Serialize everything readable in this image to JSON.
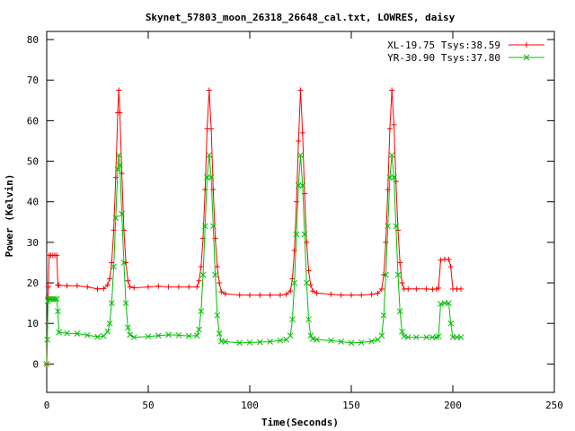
{
  "chart_data": {
    "type": "line",
    "title": "Skynet_57803_moon_26318_26648_cal.txt, LOWRES, daisy",
    "xlabel": "Time(Seconds)",
    "ylabel": "Power (Kelvin)",
    "xlim": [
      0,
      250
    ],
    "ylim": [
      -7,
      82
    ],
    "xticks": [
      0,
      50,
      100,
      150,
      200,
      250
    ],
    "yticks": [
      0,
      10,
      20,
      30,
      40,
      50,
      60,
      70,
      80
    ],
    "grid": false,
    "legend_position": "top-right",
    "series": [
      {
        "name": "XL-19.75 Tsys:38.59",
        "color": "#ff0000",
        "marker": "plus",
        "points": [
          [
            0,
            0
          ],
          [
            0.3,
            10
          ],
          [
            0.6,
            16.5
          ],
          [
            0.8,
            19
          ],
          [
            1.2,
            26.8
          ],
          [
            2,
            26.8
          ],
          [
            3,
            26.8
          ],
          [
            4,
            26.8
          ],
          [
            5,
            26.8
          ],
          [
            5.5,
            19.5
          ],
          [
            6,
            19.4
          ],
          [
            10,
            19.3
          ],
          [
            15,
            19.3
          ],
          [
            20,
            19
          ],
          [
            25,
            18.5
          ],
          [
            28,
            18.6
          ],
          [
            30,
            19.5
          ],
          [
            31,
            21
          ],
          [
            32,
            25
          ],
          [
            33,
            33
          ],
          [
            34,
            46
          ],
          [
            35,
            62
          ],
          [
            35.5,
            67.5
          ],
          [
            36,
            62
          ],
          [
            37,
            47
          ],
          [
            38,
            33
          ],
          [
            39,
            25
          ],
          [
            40,
            20.5
          ],
          [
            41,
            19
          ],
          [
            43,
            18.8
          ],
          [
            50,
            19
          ],
          [
            55,
            19.2
          ],
          [
            60,
            19
          ],
          [
            65,
            19
          ],
          [
            70,
            19
          ],
          [
            74,
            19
          ],
          [
            75,
            20.5
          ],
          [
            76,
            24
          ],
          [
            77,
            31
          ],
          [
            78,
            43
          ],
          [
            79,
            58
          ],
          [
            80,
            67.5
          ],
          [
            81,
            58
          ],
          [
            82,
            43
          ],
          [
            83,
            31
          ],
          [
            84,
            24
          ],
          [
            85,
            20
          ],
          [
            86,
            17.8
          ],
          [
            88,
            17.3
          ],
          [
            95,
            17
          ],
          [
            100,
            17
          ],
          [
            105,
            17
          ],
          [
            110,
            17
          ],
          [
            115,
            17
          ],
          [
            118,
            17.2
          ],
          [
            120,
            18
          ],
          [
            121,
            21
          ],
          [
            122,
            28
          ],
          [
            123,
            40
          ],
          [
            124,
            55
          ],
          [
            125,
            67.5
          ],
          [
            126,
            57
          ],
          [
            127,
            42
          ],
          [
            128,
            30
          ],
          [
            129,
            23
          ],
          [
            130,
            19.5
          ],
          [
            131,
            18
          ],
          [
            133,
            17.5
          ],
          [
            140,
            17.2
          ],
          [
            145,
            17
          ],
          [
            150,
            17
          ],
          [
            155,
            17
          ],
          [
            160,
            17.2
          ],
          [
            163,
            17.4
          ],
          [
            165,
            18.5
          ],
          [
            166,
            22
          ],
          [
            167,
            30
          ],
          [
            168,
            43
          ],
          [
            169,
            58
          ],
          [
            170,
            67.5
          ],
          [
            171,
            59
          ],
          [
            172,
            45
          ],
          [
            173,
            33
          ],
          [
            174,
            25
          ],
          [
            175,
            20
          ],
          [
            176,
            18.5
          ],
          [
            178,
            18.5
          ],
          [
            182,
            18.5
          ],
          [
            187,
            18.5
          ],
          [
            190,
            18.4
          ],
          [
            192,
            18.5
          ],
          [
            193,
            18.7
          ],
          [
            194,
            25.6
          ],
          [
            196,
            25.8
          ],
          [
            198,
            25.8
          ],
          [
            199,
            24
          ],
          [
            200,
            18.5
          ],
          [
            202,
            18.5
          ],
          [
            204,
            18.5
          ]
        ]
      },
      {
        "name": "YR-30.90 Tsys:37.80",
        "color": "#00c000",
        "marker": "cross",
        "points": [
          [
            0,
            0
          ],
          [
            0.3,
            6
          ],
          [
            0.6,
            15.5
          ],
          [
            1.2,
            16
          ],
          [
            2,
            16
          ],
          [
            3,
            16
          ],
          [
            4,
            16
          ],
          [
            5,
            16
          ],
          [
            5.5,
            13
          ],
          [
            6,
            7.8
          ],
          [
            10,
            7.6
          ],
          [
            15,
            7.5
          ],
          [
            20,
            7.1
          ],
          [
            25,
            6.7
          ],
          [
            28,
            6.9
          ],
          [
            30,
            8
          ],
          [
            31,
            10
          ],
          [
            32,
            15
          ],
          [
            33,
            24
          ],
          [
            34,
            36
          ],
          [
            35,
            48
          ],
          [
            35.5,
            51.5
          ],
          [
            36,
            49
          ],
          [
            37,
            37
          ],
          [
            38,
            25
          ],
          [
            39,
            15
          ],
          [
            40,
            9
          ],
          [
            41,
            7.2
          ],
          [
            43,
            6.6
          ],
          [
            50,
            6.8
          ],
          [
            55,
            7
          ],
          [
            60,
            7.2
          ],
          [
            65,
            7.1
          ],
          [
            70,
            6.9
          ],
          [
            74,
            7
          ],
          [
            75,
            8.5
          ],
          [
            76,
            13
          ],
          [
            77,
            22
          ],
          [
            78,
            34
          ],
          [
            79,
            46
          ],
          [
            80,
            51.5
          ],
          [
            81,
            46
          ],
          [
            82,
            34
          ],
          [
            83,
            22
          ],
          [
            84,
            12
          ],
          [
            85,
            7.5
          ],
          [
            86,
            5.6
          ],
          [
            88,
            5.5
          ],
          [
            95,
            5.2
          ],
          [
            100,
            5.3
          ],
          [
            105,
            5.4
          ],
          [
            110,
            5.5
          ],
          [
            115,
            5.8
          ],
          [
            118,
            6
          ],
          [
            120,
            7
          ],
          [
            121,
            11
          ],
          [
            122,
            20
          ],
          [
            123,
            32
          ],
          [
            124,
            44
          ],
          [
            125,
            51.5
          ],
          [
            126,
            44
          ],
          [
            127,
            32
          ],
          [
            128,
            20
          ],
          [
            129,
            11
          ],
          [
            130,
            7
          ],
          [
            131,
            6.2
          ],
          [
            133,
            6
          ],
          [
            140,
            5.8
          ],
          [
            145,
            5.5
          ],
          [
            150,
            5.2
          ],
          [
            155,
            5.3
          ],
          [
            160,
            5.6
          ],
          [
            163,
            6
          ],
          [
            165,
            7
          ],
          [
            166,
            12
          ],
          [
            167,
            22
          ],
          [
            168,
            34
          ],
          [
            169,
            46
          ],
          [
            170,
            51.5
          ],
          [
            171,
            46
          ],
          [
            172,
            34
          ],
          [
            173,
            22
          ],
          [
            174,
            13
          ],
          [
            175,
            8
          ],
          [
            176,
            6.8
          ],
          [
            178,
            6.6
          ],
          [
            182,
            6.6
          ],
          [
            187,
            6.6
          ],
          [
            190,
            6.6
          ],
          [
            192,
            6.6
          ],
          [
            193,
            6.8
          ],
          [
            194,
            14.8
          ],
          [
            196,
            15
          ],
          [
            198,
            15
          ],
          [
            199,
            10
          ],
          [
            200,
            6.6
          ],
          [
            202,
            6.6
          ],
          [
            204,
            6.6
          ]
        ]
      }
    ]
  }
}
